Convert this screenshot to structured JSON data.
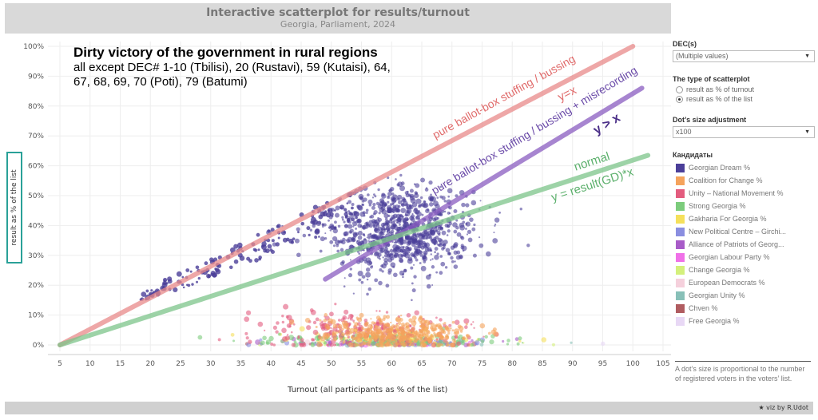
{
  "header": {
    "title": "Interactive scatterplot for results/turnout",
    "subtitle": "Georgia, Parliament, 2024"
  },
  "annotation": {
    "title": "Dirty victory of the government in rural regions",
    "subtitle": "all except DEC# 1-10 (Tbilisi), 20 (Rustavi), 59 (Kutaisi), 64, 67, 68, 69, 70 (Poti), 79 (Batumi)"
  },
  "lines": [
    {
      "name": "y=x",
      "label": "pure ballot-box stuffing / bussing",
      "formula": "y=x",
      "color": "#e88a8a",
      "from": [
        5,
        0
      ],
      "to": [
        100,
        100
      ]
    },
    {
      "name": "y>x",
      "label": "pure ballot-box stuffing / bussing + misrecording",
      "formula": "y > x",
      "color": "#8a5cc0",
      "from": [
        49,
        22
      ],
      "to": [
        101.5,
        86
      ]
    },
    {
      "name": "normal",
      "label": "normal",
      "formula": "y = result(GD)*x",
      "color": "#7cc48a",
      "from": [
        5,
        0
      ],
      "to": [
        102.5,
        63.5
      ]
    }
  ],
  "chart_data": {
    "type": "scatter",
    "title": "Interactive scatterplot for results/turnout",
    "xlabel": "Turnout (all participants as % of the list)",
    "ylabel": "result as % of the list",
    "xlim": [
      5,
      105
    ],
    "ylim": [
      0,
      100
    ],
    "xticks": [
      "5",
      "10",
      "15",
      "20",
      "25",
      "30",
      "35",
      "40",
      "45",
      "50",
      "55",
      "60",
      "65",
      "70",
      "75",
      "80",
      "85",
      "90",
      "95",
      "100",
      "105"
    ],
    "yticks": [
      "0%",
      "10%",
      "20%",
      "30%",
      "40%",
      "50%",
      "60%",
      "70%",
      "80%",
      "90%",
      "100%"
    ],
    "grid": true,
    "series": [
      {
        "name": "Georgian Dream %",
        "color": "#4b3f99",
        "cluster": {
          "x_mean": 61,
          "y_mean": 38,
          "x_sd": 6,
          "y_sd": 7,
          "n": 900
        },
        "tail": {
          "x_range": [
            18,
            55
          ],
          "y_ratio": [
            0.75,
            0.98
          ],
          "n": 160
        }
      },
      {
        "name": "Coalition for Change %",
        "color": "#f5a35c",
        "cluster": {
          "x_mean": 61,
          "y_mean": 4,
          "x_sd": 6,
          "y_sd": 2.5,
          "n": 400
        }
      },
      {
        "name": "Unity – National Movement %",
        "color": "#e35c7e",
        "cluster": {
          "x_mean": 55,
          "y_mean": 5,
          "x_sd": 9,
          "y_sd": 3,
          "n": 220
        }
      },
      {
        "name": "Strong Georgia %",
        "color": "#7ccc7c",
        "cluster": {
          "x_mean": 60,
          "y_mean": 1.5,
          "x_sd": 10,
          "y_sd": 1.2,
          "n": 150
        }
      },
      {
        "name": "Gakharia For Georgia %",
        "color": "#f5e05c",
        "cluster": {
          "x_mean": 60,
          "y_mean": 2,
          "x_sd": 8,
          "y_sd": 1.5,
          "n": 100
        }
      },
      {
        "name": "New Political Centre – Girchi...",
        "color": "#8a8ee0",
        "cluster": {
          "x_mean": 60,
          "y_mean": 0.8,
          "x_sd": 9,
          "y_sd": 0.7,
          "n": 60
        }
      },
      {
        "name": "Alliance of Patriots of Georg...",
        "color": "#a85cc8",
        "cluster": {
          "x_mean": 60,
          "y_mean": 0.7,
          "x_sd": 9,
          "y_sd": 0.6,
          "n": 40
        }
      },
      {
        "name": "Georgian Labour Party %",
        "color": "#f070e8",
        "cluster": {
          "x_mean": 60,
          "y_mean": 0.6,
          "x_sd": 9,
          "y_sd": 0.5,
          "n": 30
        }
      },
      {
        "name": "Change Georgia %",
        "color": "#d4f07c",
        "cluster": {
          "x_mean": 60,
          "y_mean": 0.5,
          "x_sd": 9,
          "y_sd": 0.4,
          "n": 30
        }
      },
      {
        "name": "European Democrats %",
        "color": "#f5d0dc",
        "cluster": {
          "x_mean": 60,
          "y_mean": 0.5,
          "x_sd": 9,
          "y_sd": 0.4,
          "n": 20
        }
      },
      {
        "name": "Georgian Unity %",
        "color": "#88c0b8",
        "cluster": {
          "x_mean": 60,
          "y_mean": 0.4,
          "x_sd": 9,
          "y_sd": 0.3,
          "n": 20
        }
      },
      {
        "name": "Chven %",
        "color": "#b05c60",
        "cluster": {
          "x_mean": 60,
          "y_mean": 0.4,
          "x_sd": 9,
          "y_sd": 0.3,
          "n": 20
        }
      },
      {
        "name": "Free Georgia %",
        "color": "#e8d8f5",
        "cluster": {
          "x_mean": 60,
          "y_mean": 0.3,
          "x_sd": 9,
          "y_sd": 0.3,
          "n": 20
        }
      }
    ]
  },
  "panel": {
    "dec_label": "DEC(s)",
    "dec_value": "(Multiple values)",
    "type_label": "The type of scatterplot",
    "type_options": [
      "result as % of turnout",
      "result as % of the list"
    ],
    "type_selected": 1,
    "size_label": "Dot’s size adjustment",
    "size_value": "x100",
    "legend_title": "Кандидаты",
    "note": "A dot’s size is proportional to the number of registered voters in the voters’ list."
  },
  "footer": {
    "credit": "★ viz by R.Udot"
  }
}
